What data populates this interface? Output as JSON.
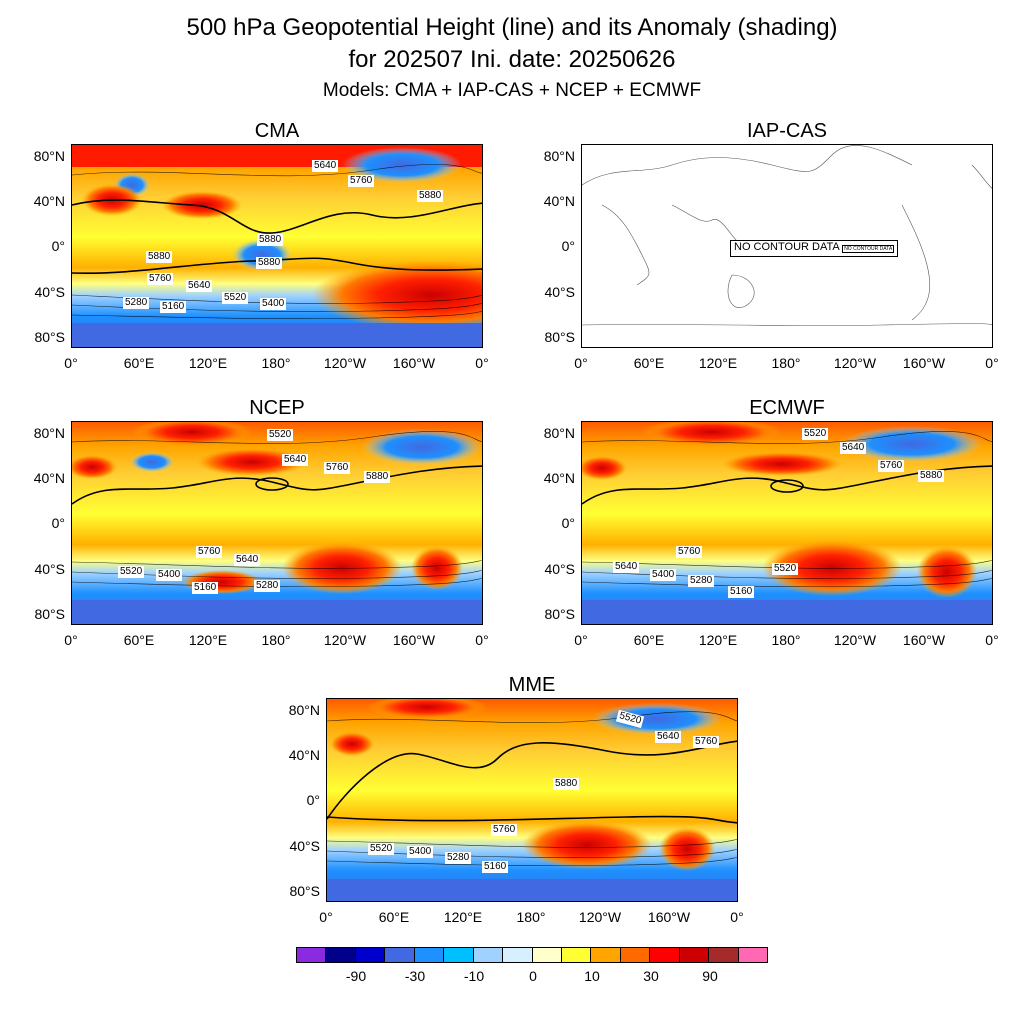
{
  "header": {
    "line1": "500 hPa Geopotential Height (line) and its Anomaly (shading)",
    "line2": "for 202507 Ini. date: 20250626",
    "line3": "Models: CMA + IAP-CAS + NCEP + ECMWF"
  },
  "axes": {
    "lat_labels": [
      "80°N",
      "40°N",
      "0°",
      "40°S",
      "80°S"
    ],
    "lon_labels": [
      "0°",
      "60°E",
      "120°E",
      "180°",
      "120°W",
      "160°W",
      "0°"
    ]
  },
  "panels": [
    {
      "title": "CMA",
      "contours": [
        "5640",
        "5760",
        "5880",
        "5880",
        "5880",
        "5880",
        "5760",
        "5640",
        "5520",
        "5400",
        "5280",
        "5160"
      ]
    },
    {
      "title": "IAP-CAS",
      "no_data": "NO CONTOUR DATA",
      "no_data_small": "NO CONTOUR DATA"
    },
    {
      "title": "NCEP",
      "contours": [
        "5520",
        "5640",
        "5760",
        "5880",
        "5760",
        "5640",
        "5520",
        "5400",
        "5160",
        "5280"
      ]
    },
    {
      "title": "ECMWF",
      "contours": [
        "5520",
        "5640",
        "5760",
        "5880",
        "5760",
        "5640",
        "5400",
        "5280",
        "5520",
        "5160"
      ]
    },
    {
      "title": "MME",
      "contours": [
        "5520",
        "5640",
        "5760",
        "5880",
        "5760",
        "5520",
        "5400",
        "5280",
        "5160"
      ]
    }
  ],
  "colorbar": {
    "colors": [
      "#8a2be2",
      "#00008b",
      "#0000cd",
      "#4169e1",
      "#1e90ff",
      "#00bfff",
      "#a0d2ff",
      "#d6f0ff",
      "#ffffcc",
      "#ffff33",
      "#ffa500",
      "#ff6a00",
      "#ff0000",
      "#cc0000",
      "#a52a2a",
      "#ff69b4"
    ],
    "labels": [
      "-90",
      "-30",
      "-10",
      "0",
      "10",
      "30",
      "90"
    ]
  }
}
